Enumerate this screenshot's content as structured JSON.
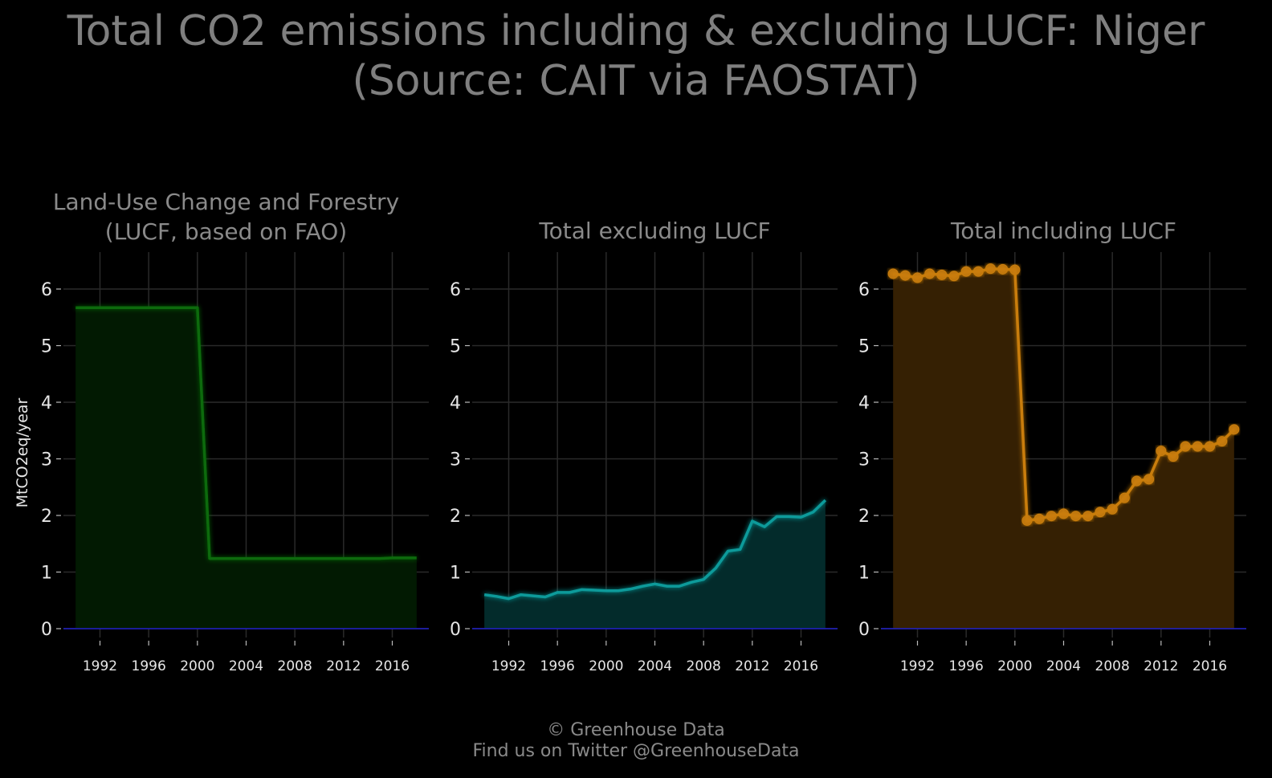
{
  "title": {
    "line1": "Total CO2 emissions including & excluding LUCF: Niger",
    "line2": "(Source: CAIT via FAOSTAT)"
  },
  "footer": {
    "line1": "© Greenhouse Data",
    "line2": "Find us on Twitter @GreenhouseData"
  },
  "chart_data": [
    {
      "type": "area",
      "title": "Land-Use Change and Forestry\n(LUCF, based on FAO)",
      "ylabel": "MtCO2eq/year",
      "xlim": [
        1989,
        2019
      ],
      "ylim": [
        0,
        6.6
      ],
      "xticks": [
        1992,
        1996,
        2000,
        2004,
        2008,
        2012,
        2016
      ],
      "yticks": [
        0,
        1,
        2,
        3,
        4,
        5,
        6
      ],
      "grid": true,
      "markers": false,
      "color": "#0a6a0a",
      "fill": "#021a02",
      "x": [
        1990,
        1991,
        1992,
        1993,
        1994,
        1995,
        1996,
        1997,
        1998,
        1999,
        2000,
        2001,
        2002,
        2003,
        2004,
        2005,
        2006,
        2007,
        2008,
        2009,
        2010,
        2011,
        2012,
        2013,
        2014,
        2015,
        2016,
        2017,
        2018
      ],
      "y": [
        5.67,
        5.67,
        5.67,
        5.67,
        5.67,
        5.67,
        5.67,
        5.67,
        5.67,
        5.67,
        5.67,
        1.24,
        1.24,
        1.24,
        1.24,
        1.24,
        1.24,
        1.24,
        1.24,
        1.24,
        1.24,
        1.24,
        1.24,
        1.24,
        1.24,
        1.24,
        1.25,
        1.25,
        1.25
      ]
    },
    {
      "type": "area",
      "title": "Total excluding LUCF",
      "xlim": [
        1989,
        2019
      ],
      "ylim": [
        0,
        6.6
      ],
      "xticks": [
        1992,
        1996,
        2000,
        2004,
        2008,
        2012,
        2016
      ],
      "yticks": [
        0,
        1,
        2,
        3,
        4,
        5,
        6
      ],
      "grid": true,
      "markers": false,
      "color": "#0f9a9a",
      "fill": "#032b2b",
      "x": [
        1990,
        1991,
        1992,
        1993,
        1994,
        1995,
        1996,
        1997,
        1998,
        1999,
        2000,
        2001,
        2002,
        2003,
        2004,
        2005,
        2006,
        2007,
        2008,
        2009,
        2010,
        2011,
        2012,
        2013,
        2014,
        2015,
        2016,
        2017,
        2018
      ],
      "y": [
        0.6,
        0.57,
        0.53,
        0.6,
        0.58,
        0.56,
        0.64,
        0.64,
        0.69,
        0.68,
        0.67,
        0.67,
        0.7,
        0.75,
        0.79,
        0.75,
        0.75,
        0.82,
        0.87,
        1.07,
        1.37,
        1.4,
        1.9,
        1.8,
        1.98,
        1.98,
        1.97,
        2.06,
        2.27
      ]
    },
    {
      "type": "area",
      "title": "Total including LUCF",
      "xlim": [
        1989,
        2019
      ],
      "ylim": [
        0,
        6.6
      ],
      "xticks": [
        1992,
        1996,
        2000,
        2004,
        2008,
        2012,
        2016
      ],
      "yticks": [
        0,
        1,
        2,
        3,
        4,
        5,
        6
      ],
      "grid": true,
      "markers": true,
      "color": "#c97d0a",
      "fill": "#352003",
      "x": [
        1990,
        1991,
        1992,
        1993,
        1994,
        1995,
        1996,
        1997,
        1998,
        1999,
        2000,
        2001,
        2002,
        2003,
        2004,
        2005,
        2006,
        2007,
        2008,
        2009,
        2010,
        2011,
        2012,
        2013,
        2014,
        2015,
        2016,
        2017,
        2018
      ],
      "y": [
        6.27,
        6.24,
        6.2,
        6.27,
        6.25,
        6.23,
        6.31,
        6.31,
        6.36,
        6.35,
        6.34,
        1.91,
        1.94,
        1.99,
        2.03,
        1.99,
        1.99,
        2.06,
        2.11,
        2.31,
        2.61,
        2.64,
        3.14,
        3.04,
        3.22,
        3.22,
        3.22,
        3.31,
        3.52
      ]
    }
  ],
  "baseline_color": "#2020c8"
}
